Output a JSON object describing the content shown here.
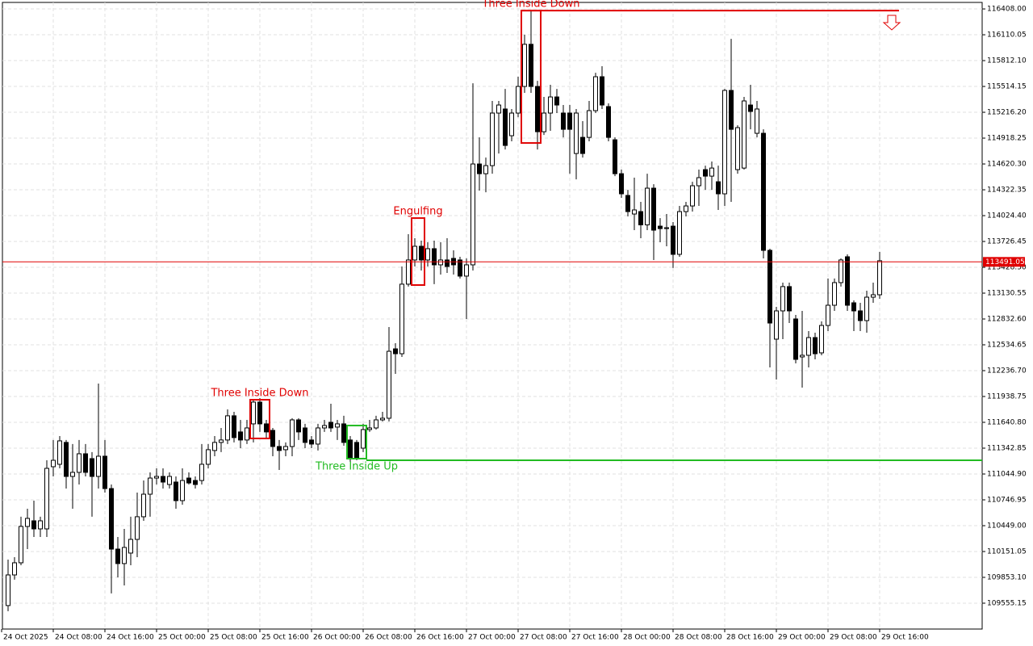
{
  "chart_data": {
    "type": "candlestick",
    "up_color": "#ffffff",
    "down_color": "#000000",
    "color": "#000000",
    "grid": true,
    "xlim": [
      -0.875,
      150.875
    ],
    "xticks": [
      {
        "value": -1,
        "label": "24 Oct 2025"
      },
      {
        "value": 7,
        "label": "24 Oct 08:00"
      },
      {
        "value": 15,
        "label": "24 Oct 16:00"
      },
      {
        "value": 23,
        "label": "25 Oct 00:00"
      },
      {
        "value": 31,
        "label": "25 Oct 08:00"
      },
      {
        "value": 39,
        "label": "25 Oct 16:00"
      },
      {
        "value": 47,
        "label": "26 Oct 00:00"
      },
      {
        "value": 55,
        "label": "26 Oct 08:00"
      },
      {
        "value": 63,
        "label": "26 Oct 16:00"
      },
      {
        "value": 71,
        "label": "27 Oct 00:00"
      },
      {
        "value": 79,
        "label": "27 Oct 08:00"
      },
      {
        "value": 87,
        "label": "27 Oct 16:00"
      },
      {
        "value": 95,
        "label": "28 Oct 00:00"
      },
      {
        "value": 103,
        "label": "28 Oct 08:00"
      },
      {
        "value": 111,
        "label": "28 Oct 16:00"
      },
      {
        "value": 119,
        "label": "29 Oct 00:00"
      },
      {
        "value": 127,
        "label": "29 Oct 08:00"
      },
      {
        "value": 135,
        "label": "29 Oct 16:00"
      }
    ],
    "ylim": [
      109257,
      116483
    ],
    "yticks": [
      {
        "value": 116408,
        "label": "116408.00"
      },
      116110.05,
      {
        "value": 115812.1,
        "label": "115812.10"
      },
      115514.15,
      {
        "value": 115216.2,
        "label": "115216.20"
      },
      114918.25,
      {
        "value": 114620.3,
        "label": "114620.30"
      },
      114322.35,
      {
        "value": 114024.4,
        "label": "114024.40"
      },
      113726.45,
      {
        "value": 113428.5,
        "label": "113428.50"
      },
      113130.55,
      {
        "value": 112832.6,
        "label": "112832.60"
      },
      112534.65,
      {
        "value": 112236.7,
        "label": "112236.70"
      },
      111938.75,
      {
        "value": 111640.8,
        "label": "111640.80"
      },
      111342.85,
      {
        "value": 111044.9,
        "label": "111044.90"
      },
      110746.95,
      {
        "value": 110449,
        "label": "110449.00"
      },
      110151.05,
      {
        "value": 109853.1,
        "label": "109853.10"
      },
      109555.15
    ],
    "current_price": 113491.05,
    "current_price_color": "#e00000",
    "open": [
      109528,
      109881,
      110021,
      110440,
      110505,
      110412,
      110412,
      111129,
      111157,
      111409,
      111017,
      111064,
      111278,
      111222,
      111017,
      111250,
      110877,
      110179,
      110012,
      110133,
      110291,
      110552,
      110812,
      110998,
      111017,
      110924,
      110952,
      110738,
      110998,
      110970,
      110970,
      111157,
      111316,
      111409,
      111437,
      111716,
      111530,
      111437,
      111623,
      111874,
      111623,
      111548,
      111362,
      111325,
      111362,
      111669,
      111576,
      111437,
      111390,
      111576,
      111641,
      111586,
      111623,
      111437,
      111409,
      111343,
      111557,
      111576,
      111669,
      111688,
      112488,
      112432,
      113234,
      113513,
      113671,
      113513,
      113643,
      113457,
      113513,
      113531,
      113513,
      113327,
      113457,
      114620,
      114508,
      114601,
      115207,
      115254,
      114946,
      115207,
      115514,
      116000,
      115514,
      114992,
      115207,
      115393,
      115207,
      115207,
      114741,
      114927,
      114927,
      115235,
      115626,
      115282,
      114899,
      114508,
      114257,
      114043,
      114071,
      113918,
      114341,
      113903,
      113875,
      113903,
      113578,
      114071,
      114136,
      114369,
      114555,
      114480,
      114415,
      114276,
      115468,
      114555,
      114573,
      115300,
      114974,
      114974,
      113624,
      112600,
      112926,
      113206,
      112833,
      112395,
      112414,
      112618,
      112442,
      112758,
      112991,
      113252,
      113550,
      113019,
      112926,
      112814,
      113084,
      113112
    ],
    "high": [
      110058,
      110086,
      110552,
      110645,
      110738,
      110552,
      111203,
      111437,
      111483,
      111437,
      111390,
      111437,
      111390,
      111297,
      112088,
      111437,
      110924,
      110319,
      110412,
      110552,
      110831,
      110970,
      111064,
      111110,
      111110,
      111064,
      111017,
      111110,
      111064,
      111017,
      111390,
      111390,
      111483,
      111576,
      111790,
      111762,
      111669,
      111669,
      111902,
      111920,
      111669,
      111576,
      111437,
      111409,
      111688,
      111688,
      111623,
      111483,
      111623,
      111669,
      111855,
      111669,
      111716,
      111483,
      111437,
      111623,
      111669,
      111716,
      111762,
      112740,
      112553,
      113438,
      113810,
      113764,
      113736,
      113717,
      113736,
      113717,
      113764,
      113624,
      113550,
      113531,
      115551,
      114927,
      114694,
      115347,
      115347,
      115486,
      115254,
      115626,
      116110,
      116389,
      115579,
      115393,
      115533,
      115486,
      115300,
      115300,
      115254,
      115114,
      115347,
      115672,
      115747,
      115319,
      114927,
      114555,
      114322,
      114462,
      114183,
      114508,
      114387,
      113996,
      114043,
      113950,
      114136,
      114183,
      114415,
      114555,
      114601,
      114648,
      114601,
      115486,
      116063,
      115067,
      115393,
      115533,
      115347,
      115020,
      113643,
      112972,
      113252,
      113252,
      112879,
      112926,
      112693,
      112674,
      112805,
      113299,
      113299,
      113531,
      113578,
      113047,
      113019,
      113159,
      113252,
      113606
    ],
    "low": [
      109463,
      109826,
      109993,
      110179,
      110319,
      110319,
      110319,
      111017,
      111110,
      110877,
      110645,
      110924,
      111017,
      110552,
      110877,
      110831,
      109668,
      109853,
      109760,
      109993,
      110086,
      110505,
      110552,
      110924,
      110877,
      110877,
      110645,
      110691,
      110924,
      110877,
      110924,
      111110,
      111250,
      111297,
      111390,
      111409,
      111343,
      111390,
      111409,
      111530,
      111455,
      111250,
      111092,
      111250,
      111250,
      111437,
      111343,
      111343,
      111316,
      111530,
      111530,
      111437,
      111371,
      111185,
      111203,
      111297,
      111530,
      111557,
      111651,
      111651,
      112200,
      112395,
      113206,
      113438,
      113392,
      113438,
      113234,
      113345,
      113364,
      113345,
      113299,
      112833,
      113392,
      114313,
      114294,
      114508,
      114741,
      114787,
      114881,
      115160,
      115440,
      115440,
      114787,
      114955,
      115002,
      115207,
      114927,
      114508,
      114443,
      114694,
      114881,
      115207,
      115254,
      114881,
      114480,
      114229,
      114015,
      113857,
      113764,
      113857,
      113513,
      113717,
      113671,
      113420,
      113550,
      114015,
      114071,
      114136,
      114322,
      114322,
      114090,
      114136,
      114183,
      114508,
      114555,
      115020,
      114927,
      113531,
      112274,
      112134,
      112600,
      112786,
      112321,
      112041,
      112274,
      112367,
      112414,
      112693,
      112926,
      113206,
      112926,
      112693,
      112693,
      112674,
      113019,
      113066
    ],
    "close": [
      109881,
      110021,
      110440,
      110533,
      110412,
      110505,
      111110,
      111203,
      111427,
      111017,
      111064,
      111278,
      111064,
      111017,
      111250,
      110877,
      110179,
      110012,
      110198,
      110291,
      110552,
      110812,
      110998,
      111017,
      110952,
      111017,
      110738,
      110970,
      110942,
      110924,
      111157,
      111325,
      111409,
      111437,
      111716,
      111465,
      111437,
      111576,
      111874,
      111623,
      111530,
      111362,
      111316,
      111362,
      111669,
      111530,
      111409,
      111390,
      111576,
      111604,
      111576,
      111623,
      111409,
      111222,
      111222,
      111557,
      111576,
      111669,
      111688,
      112460,
      112432,
      113234,
      113513,
      113671,
      113513,
      113643,
      113457,
      113513,
      113438,
      113457,
      113327,
      113457,
      114620,
      114508,
      114601,
      115207,
      115300,
      114834,
      115207,
      115514,
      116000,
      115514,
      114992,
      115207,
      115393,
      115300,
      115020,
      115020,
      115207,
      114741,
      115235,
      115626,
      115300,
      114927,
      114508,
      114276,
      114071,
      114090,
      113918,
      114341,
      113857,
      113875,
      113885,
      113578,
      114071,
      114136,
      114369,
      114462,
      114480,
      114573,
      114276,
      115468,
      115020,
      115039,
      115347,
      115226,
      115254,
      113624,
      112786,
      112926,
      113206,
      112926,
      112367,
      112414,
      112618,
      112432,
      112758,
      112991,
      113252,
      113513,
      112991,
      112926,
      112814,
      113084,
      113112,
      113504
    ],
    "patterns": [
      {
        "label": "Three Inside Down",
        "color": "#e00000",
        "from": 38,
        "to": 40,
        "top": 111901,
        "bottom": 111455,
        "label_position": "above"
      },
      {
        "label": "Three Inside Up",
        "color": "#22bb22",
        "from": 53,
        "to": 55,
        "top": 111604,
        "bottom": 111222,
        "label_position": "below",
        "line_level": 111203
      },
      {
        "label": "Engulfing",
        "color": "#e00000",
        "from": 63,
        "to": 64,
        "top": 113996,
        "bottom": 113224,
        "label_position": "above"
      },
      {
        "label": "Three Inside Down",
        "color": "#e00000",
        "from": 80,
        "to": 82,
        "top": 116389,
        "bottom": 114862,
        "label_position": "above",
        "line_level": 116389,
        "line_to": 138
      }
    ]
  }
}
